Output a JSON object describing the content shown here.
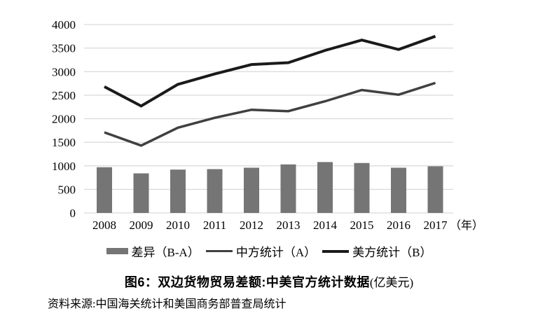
{
  "page": {
    "background": "#ffffff"
  },
  "chart_data": {
    "type": "combo",
    "title": "图6：双边货物贸易差额:中美官方统计数据",
    "title_unit": "(亿美元)",
    "source": "资料来源:中国海关统计和美国商务部普查局统计",
    "categories": [
      "2008",
      "2009",
      "2010",
      "2011",
      "2012",
      "2013",
      "2014",
      "2015",
      "2016",
      "2017"
    ],
    "x_axis_suffix": "（年）",
    "ylim": [
      0,
      4000
    ],
    "yticks": [
      0,
      500,
      1000,
      1500,
      2000,
      2500,
      3000,
      3500,
      4000
    ],
    "grid": true,
    "legend_position": "bottom",
    "series": [
      {
        "name": "差异（B-A）",
        "kind": "bar",
        "color": "#757575",
        "values": [
          970,
          840,
          920,
          930,
          960,
          1030,
          1080,
          1060,
          960,
          990
        ]
      },
      {
        "name": "中方统计（A）",
        "kind": "line",
        "color": "#404040",
        "stroke_width": 3.5,
        "values": [
          1710,
          1430,
          1810,
          2020,
          2190,
          2160,
          2370,
          2610,
          2510,
          2760
        ]
      },
      {
        "name": "美方统计（B）",
        "kind": "line",
        "color": "#1a1a1a",
        "stroke_width": 4,
        "values": [
          2680,
          2270,
          2730,
          2950,
          3150,
          3190,
          3450,
          3670,
          3470,
          3750
        ]
      }
    ],
    "colors": {
      "grid": "#d9d9d9",
      "text": "#000000"
    }
  }
}
